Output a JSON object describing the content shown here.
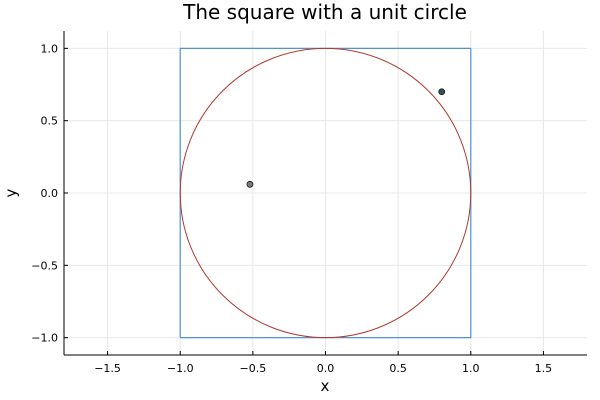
{
  "chart_data": {
    "type": "line",
    "title": "The square with a unit circle",
    "xlabel": "x",
    "ylabel": "y",
    "xlim": [
      -1.8,
      1.8
    ],
    "ylim": [
      -1.12,
      1.12
    ],
    "grid": true,
    "x_ticks": [
      -1.5,
      -1.0,
      -0.5,
      0.0,
      0.5,
      1.0,
      1.5
    ],
    "x_tick_labels": [
      "−1.5",
      "−1.0",
      "−0.5",
      "0.0",
      "0.5",
      "1.0",
      "1.5"
    ],
    "y_ticks": [
      1.0,
      0.5,
      0.0,
      -0.5,
      -1.0
    ],
    "y_tick_labels": [
      "1.0",
      "0.5",
      "0.0",
      "−0.5",
      "−1.0"
    ],
    "series": [
      {
        "shape": "square",
        "color": "#4f93cf",
        "x": [
          -1,
          1,
          1,
          -1,
          -1
        ],
        "y": [
          -1,
          -1,
          1,
          1,
          -1
        ]
      },
      {
        "shape": "circle",
        "color": "#b03a2e",
        "center": [
          0,
          0
        ],
        "radius": 1
      }
    ],
    "points": {
      "colors": [
        "#7b7b7b",
        "#2f4f5f"
      ],
      "x": [
        -0.52,
        0.8
      ],
      "y": [
        0.06,
        0.7
      ]
    }
  }
}
